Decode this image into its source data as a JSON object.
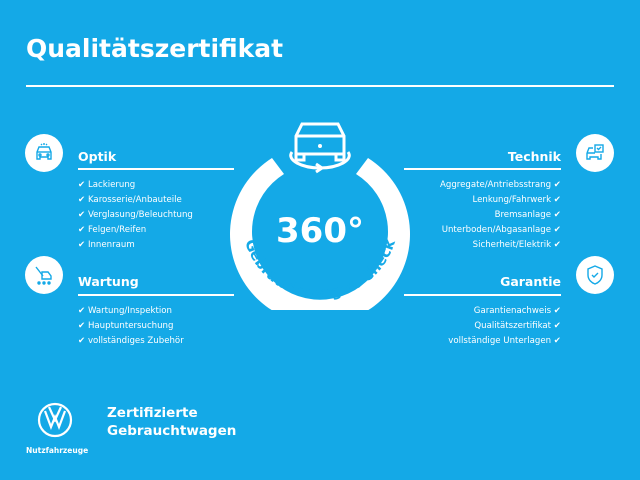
{
  "title": "Qualitätszertifikat",
  "badge": {
    "number": "360°",
    "arc_text": "Gebrauchtwagen-Check"
  },
  "sections": {
    "optik": {
      "heading": "Optik",
      "icon": "car-front-icon",
      "items": [
        "Lackierung",
        "Karosserie/Anbauteile",
        "Verglasung/Beleuchtung",
        "Felgen/Reifen",
        "Innenraum"
      ]
    },
    "wartung": {
      "heading": "Wartung",
      "icon": "wrench-van-icon",
      "items": [
        "Wartung/Inspektion",
        "Hauptuntersuchung",
        "vollständiges Zubehör"
      ]
    },
    "technik": {
      "heading": "Technik",
      "icon": "car-checklist-icon",
      "items": [
        "Aggregate/Antriebsstrang",
        "Lenkung/Fahrwerk",
        "Bremsanlage",
        "Unterboden/Abgasanlage",
        "Sicherheit/Elektrik"
      ]
    },
    "garantie": {
      "heading": "Garantie",
      "icon": "shield-check-icon",
      "items": [
        "Garantienachweis",
        "Qualitätszertifikat",
        "vollständige Unterlagen"
      ]
    }
  },
  "check_mark": "✔",
  "footer": {
    "logo_sub": "Nutzfahrzeuge",
    "line1": "Zertifizierte",
    "line2": "Gebrauchtwagen"
  },
  "colors": {
    "background": "#14a9e7",
    "foreground": "#ffffff"
  }
}
